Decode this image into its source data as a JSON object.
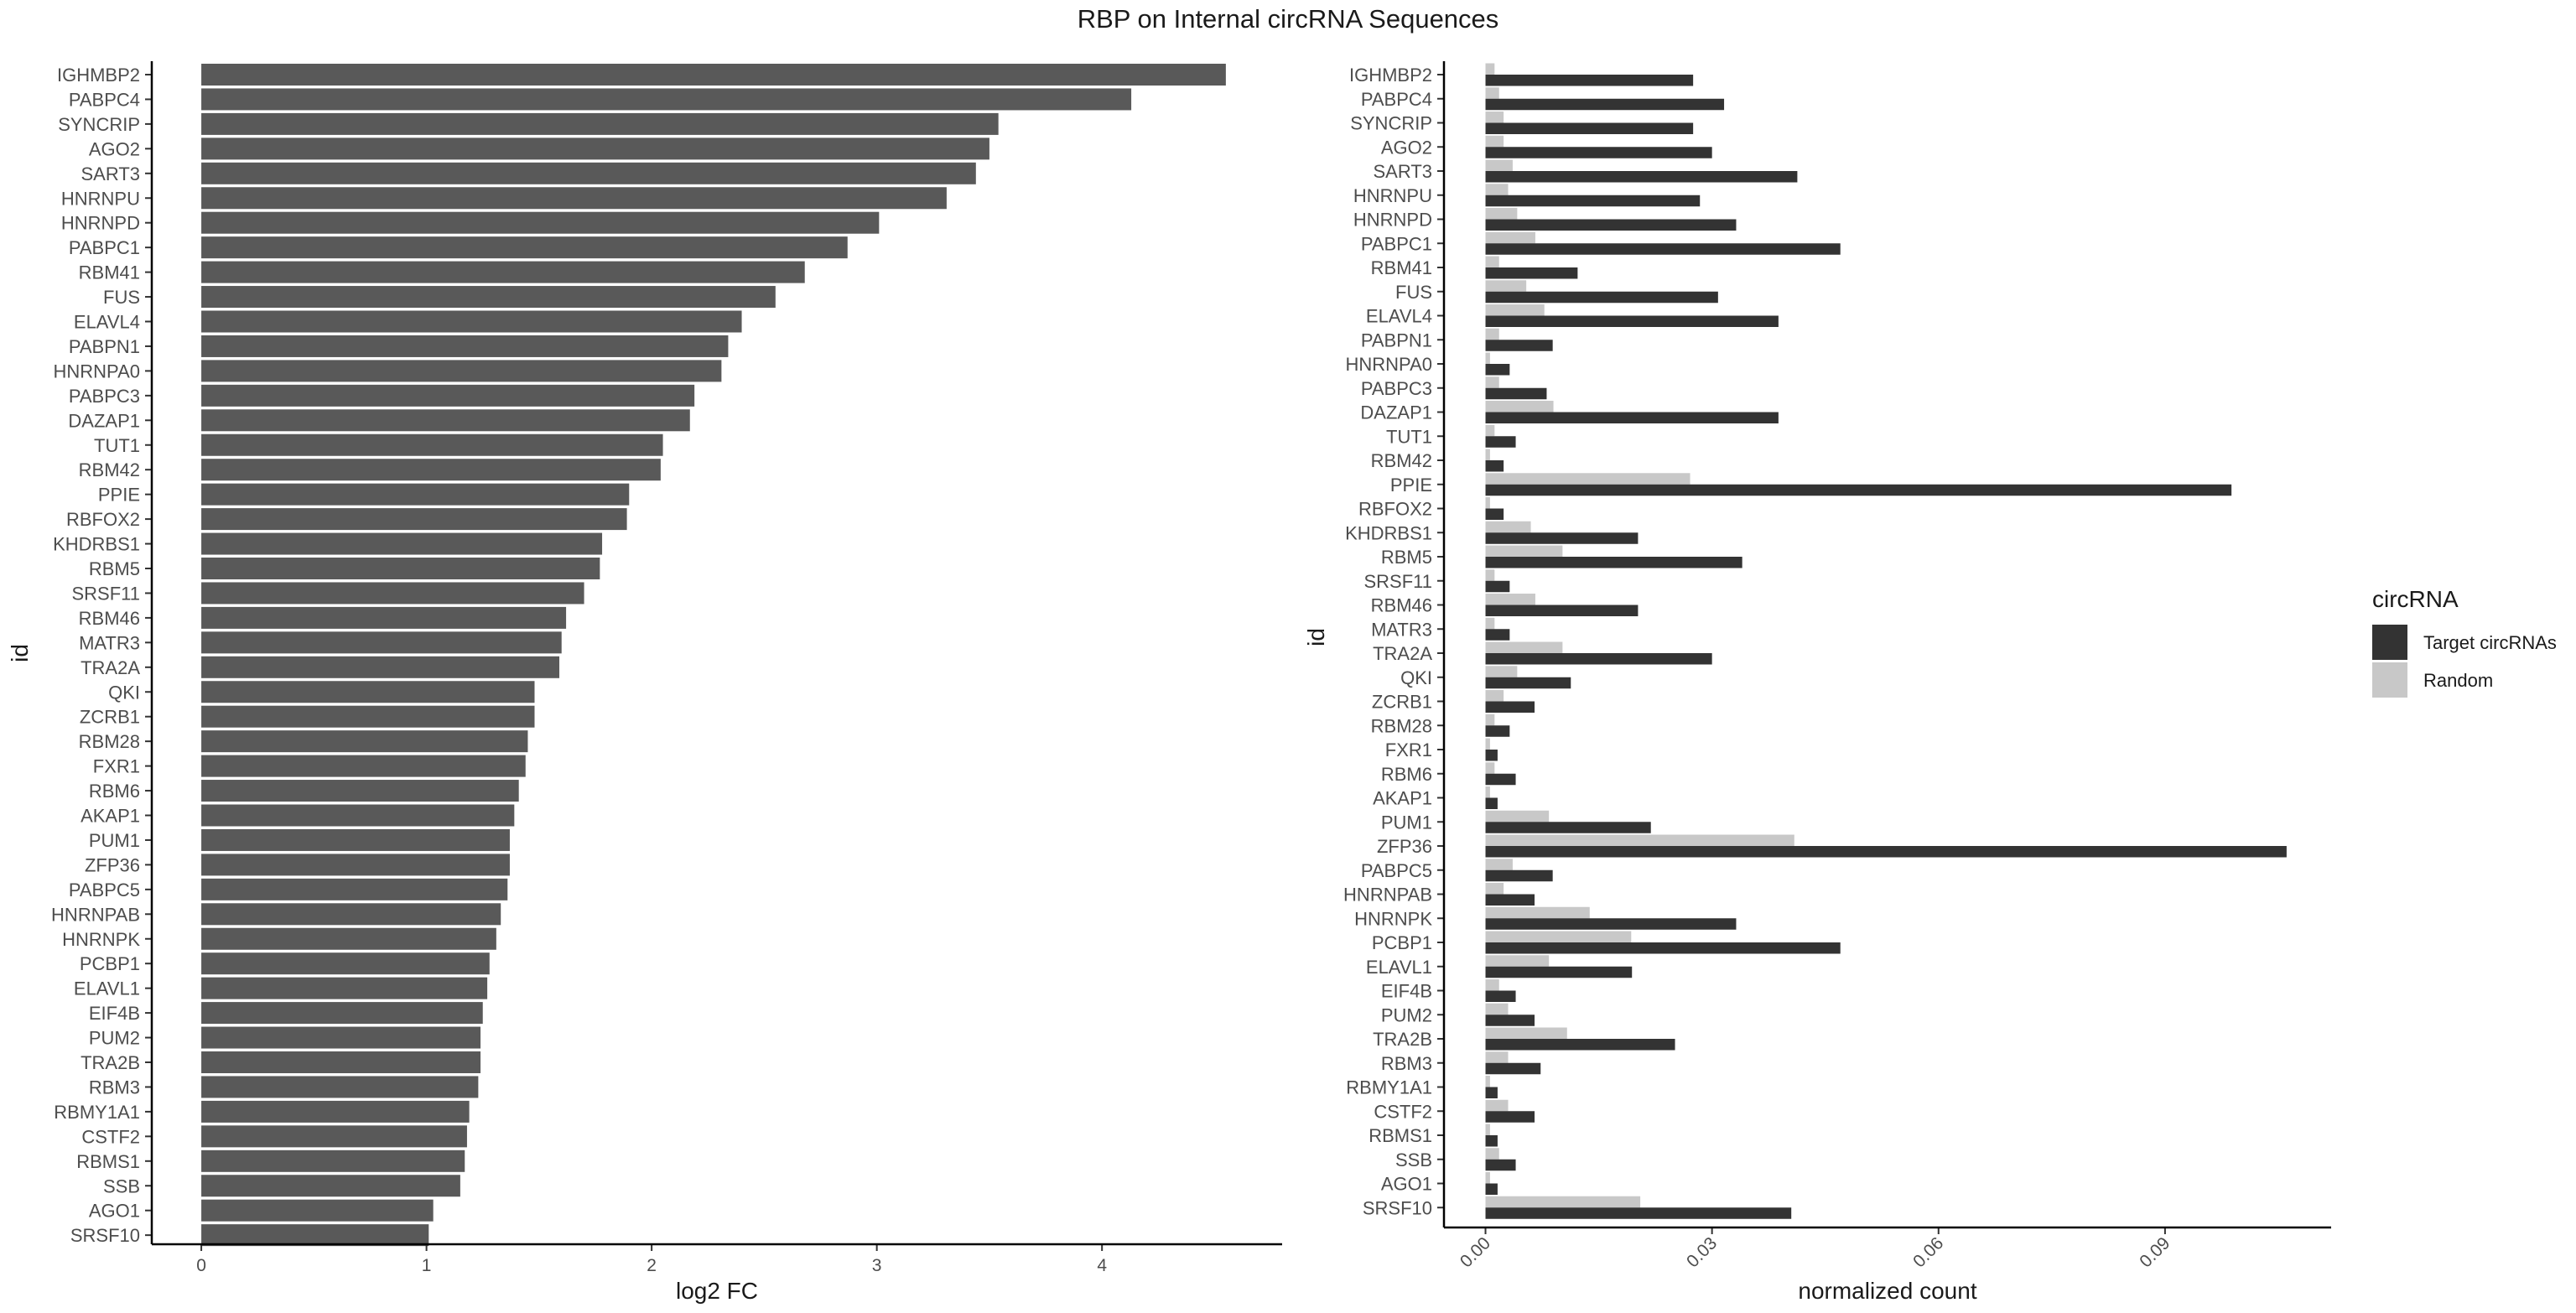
{
  "title": "RBP on Internal circRNA Sequences",
  "chart_data": [
    {
      "type": "bar",
      "orientation": "horizontal",
      "xlabel": "log2 FC",
      "ylabel": "id",
      "xlim": [
        -0.22,
        4.8
      ],
      "xticks": [
        0,
        1,
        2,
        3,
        4
      ],
      "grid": false,
      "bar_color": "#595959",
      "categories": [
        "IGHMBP2",
        "PABPC4",
        "SYNCRIP",
        "AGO2",
        "SART3",
        "HNRNPU",
        "HNRNPD",
        "PABPC1",
        "RBM41",
        "FUS",
        "ELAVL4",
        "PABPN1",
        "HNRNPA0",
        "PABPC3",
        "DAZAP1",
        "TUT1",
        "RBM42",
        "PPIE",
        "RBFOX2",
        "KHDRBS1",
        "RBM5",
        "SRSF11",
        "RBM46",
        "MATR3",
        "TRA2A",
        "QKI",
        "ZCRB1",
        "RBM28",
        "FXR1",
        "RBM6",
        "AKAP1",
        "PUM1",
        "ZFP36",
        "PABPC5",
        "HNRNPAB",
        "HNRNPK",
        "PCBP1",
        "ELAVL1",
        "EIF4B",
        "PUM2",
        "TRA2B",
        "RBM3",
        "RBMY1A1",
        "CSTF2",
        "RBMS1",
        "SSB",
        "AGO1",
        "SRSF10"
      ],
      "values": [
        4.55,
        4.13,
        3.54,
        3.5,
        3.44,
        3.31,
        3.01,
        2.87,
        2.68,
        2.55,
        2.4,
        2.34,
        2.31,
        2.19,
        2.17,
        2.05,
        2.04,
        1.9,
        1.89,
        1.78,
        1.77,
        1.7,
        1.62,
        1.6,
        1.59,
        1.48,
        1.48,
        1.45,
        1.44,
        1.41,
        1.39,
        1.37,
        1.37,
        1.36,
        1.33,
        1.31,
        1.28,
        1.27,
        1.25,
        1.24,
        1.24,
        1.23,
        1.19,
        1.18,
        1.17,
        1.15,
        1.03,
        1.01
      ]
    },
    {
      "type": "bar",
      "orientation": "horizontal",
      "grouped": true,
      "xlabel": "normalized count",
      "ylabel": "id",
      "xlim": [
        -0.0055,
        0.112
      ],
      "xticks": [
        0.0,
        0.03,
        0.06,
        0.09
      ],
      "xtick_labels": [
        "0.00",
        "0.03",
        "0.06",
        "0.09"
      ],
      "grid": false,
      "legend": {
        "title": "circRNA",
        "position": "right"
      },
      "categories": [
        "IGHMBP2",
        "PABPC4",
        "SYNCRIP",
        "AGO2",
        "SART3",
        "HNRNPU",
        "HNRNPD",
        "PABPC1",
        "RBM41",
        "FUS",
        "ELAVL4",
        "PABPN1",
        "HNRNPA0",
        "PABPC3",
        "DAZAP1",
        "TUT1",
        "RBM42",
        "PPIE",
        "RBFOX2",
        "KHDRBS1",
        "RBM5",
        "SRSF11",
        "RBM46",
        "MATR3",
        "TRA2A",
        "QKI",
        "ZCRB1",
        "RBM28",
        "FXR1",
        "RBM6",
        "AKAP1",
        "PUM1",
        "ZFP36",
        "PABPC5",
        "HNRNPAB",
        "HNRNPK",
        "PCBP1",
        "ELAVL1",
        "EIF4B",
        "PUM2",
        "TRA2B",
        "RBM3",
        "RBMY1A1",
        "CSTF2",
        "RBMS1",
        "SSB",
        "AGO1",
        "SRSF10"
      ],
      "series": [
        {
          "name": "Target circRNAs",
          "color": "#333333",
          "values": [
            0.0275,
            0.0316,
            0.0275,
            0.03,
            0.0413,
            0.0284,
            0.0332,
            0.047,
            0.0122,
            0.0308,
            0.0388,
            0.0089,
            0.0032,
            0.0081,
            0.0388,
            0.004,
            0.0024,
            0.0988,
            0.0024,
            0.0202,
            0.034,
            0.0032,
            0.0202,
            0.0032,
            0.03,
            0.0113,
            0.0065,
            0.0032,
            0.0016,
            0.004,
            0.0016,
            0.0219,
            0.1061,
            0.0089,
            0.0065,
            0.0332,
            0.047,
            0.0194,
            0.004,
            0.0065,
            0.0251,
            0.0073,
            0.0016,
            0.0065,
            0.0016,
            0.004,
            0.0016,
            0.0405
          ]
        },
        {
          "name": "Random",
          "color": "#c8c8c8",
          "values": [
            0.0012,
            0.0018,
            0.0024,
            0.0024,
            0.0036,
            0.003,
            0.0042,
            0.0066,
            0.0018,
            0.0054,
            0.0078,
            0.0018,
            0.0006,
            0.0018,
            0.009,
            0.0012,
            0.0006,
            0.0271,
            0.0006,
            0.006,
            0.0102,
            0.0012,
            0.0066,
            0.0012,
            0.0102,
            0.0042,
            0.0024,
            0.0012,
            0.0006,
            0.0012,
            0.0006,
            0.0084,
            0.0409,
            0.0036,
            0.0024,
            0.0138,
            0.0193,
            0.0084,
            0.0018,
            0.003,
            0.0108,
            0.003,
            0.0006,
            0.003,
            0.0006,
            0.0018,
            0.0006,
            0.0205
          ]
        }
      ]
    }
  ]
}
